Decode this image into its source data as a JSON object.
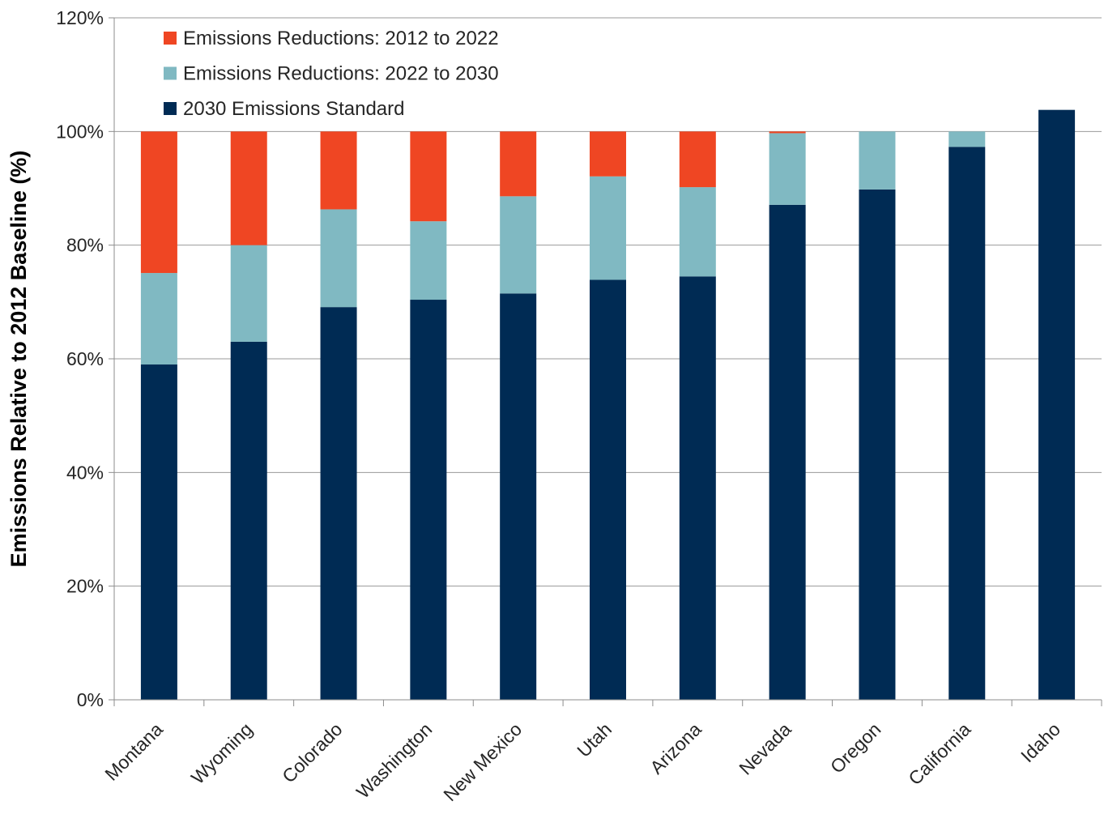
{
  "chart_data": {
    "type": "bar",
    "stacked": true,
    "title": "",
    "xlabel": "",
    "ylabel": "Emissions Relative to 2012 Baseline (%)",
    "ylim": [
      0,
      120
    ],
    "yticks": [
      "0%",
      "20%",
      "40%",
      "60%",
      "80%",
      "100%",
      "120%"
    ],
    "grid": true,
    "legend_position": "top-left",
    "categories": [
      "Montana",
      "Wyoming",
      "Colorado",
      "Washington",
      "New Mexico",
      "Utah",
      "Arizona",
      "Nevada",
      "Oregon",
      "California",
      "Idaho"
    ],
    "series": [
      {
        "name": "2030 Emissions Standard",
        "color": "#002B54",
        "values": [
          59.0,
          63.0,
          69.1,
          70.4,
          71.5,
          73.9,
          74.5,
          87.1,
          89.8,
          97.3,
          103.8
        ]
      },
      {
        "name": "Emissions Reductions: 2022 to 2030",
        "color": "#80B9C2",
        "values": [
          16.1,
          17.0,
          17.2,
          13.8,
          17.1,
          18.2,
          15.7,
          12.6,
          10.2,
          2.7,
          0
        ]
      },
      {
        "name": "Emissions Reductions: 2012 to 2022",
        "color": "#EF4623",
        "values": [
          24.9,
          20.0,
          13.7,
          15.8,
          11.4,
          7.9,
          9.8,
          0.3,
          0,
          0,
          0
        ]
      }
    ],
    "legend": [
      "Emissions Reductions: 2012 to 2022",
      "Emissions Reductions: 2022 to 2030",
      "2030 Emissions Standard"
    ]
  }
}
